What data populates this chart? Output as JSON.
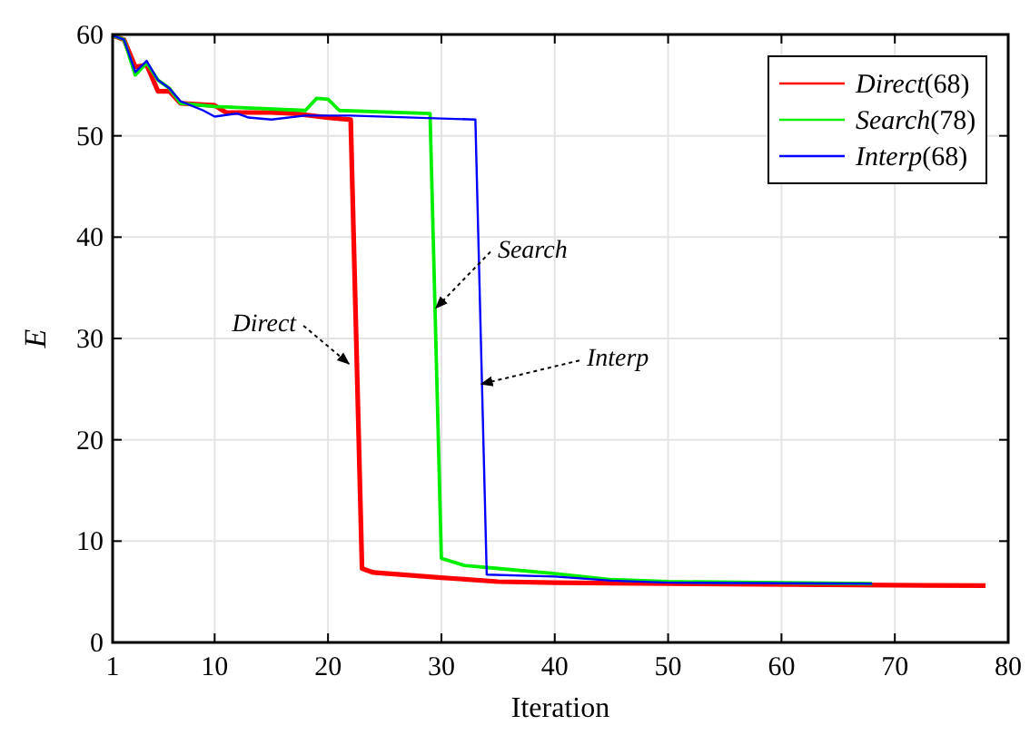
{
  "chart_data": {
    "type": "line",
    "xlabel": "Iteration",
    "ylabel": "E",
    "xlim": [
      1,
      80
    ],
    "ylim": [
      0,
      60
    ],
    "xticks": [
      1,
      10,
      20,
      30,
      40,
      50,
      60,
      70,
      80
    ],
    "yticks": [
      0,
      10,
      20,
      30,
      40,
      50,
      60
    ],
    "grid": true,
    "legend": "top right",
    "line_style": "solid",
    "marker": "none",
    "series": [
      {
        "name": "Direct(68)",
        "color": "#ff0000",
        "x": [
          1,
          2,
          3,
          4,
          5,
          6,
          7,
          10,
          11,
          15,
          17,
          20,
          22,
          23,
          24,
          30,
          35,
          40,
          50,
          78
        ],
        "values": [
          59.9,
          59.5,
          56.8,
          57,
          54.4,
          54.4,
          53.2,
          53,
          52.3,
          52.3,
          52.2,
          51.8,
          51.6,
          7.3,
          6.9,
          6.4,
          6,
          5.9,
          5.8,
          5.6
        ]
      },
      {
        "name": "Search(78)",
        "color": "#00ee00",
        "x": [
          1,
          2,
          3,
          4,
          5,
          6,
          7,
          10,
          18,
          19,
          20,
          21,
          29,
          30,
          32,
          35,
          40,
          45,
          50,
          68
        ],
        "values": [
          59.9,
          59.5,
          56,
          57.2,
          55.5,
          54.7,
          53.2,
          52.9,
          52.5,
          53.7,
          53.6,
          52.5,
          52.2,
          8.3,
          7.6,
          7.3,
          6.8,
          6.2,
          6,
          5.8
        ]
      },
      {
        "name": "Interp(68)",
        "color": "#0000ff",
        "x": [
          1,
          2,
          3,
          4,
          5,
          6,
          7,
          9,
          10,
          12,
          13,
          15,
          18,
          22,
          33,
          34,
          40,
          45,
          50,
          68
        ],
        "values": [
          59.9,
          59.5,
          56.3,
          57.4,
          55.5,
          54.7,
          53.4,
          52.5,
          51.9,
          52.2,
          51.8,
          51.6,
          52,
          52,
          51.6,
          6.7,
          6.5,
          6.1,
          5.9,
          5.8
        ]
      }
    ],
    "annotations": [
      {
        "text": "Direct",
        "x": 22,
        "y": 27.5
      },
      {
        "text": "Search",
        "x": 29.2,
        "y": 33
      },
      {
        "text": "Interp",
        "x": 33.2,
        "y": 25.5
      }
    ]
  }
}
